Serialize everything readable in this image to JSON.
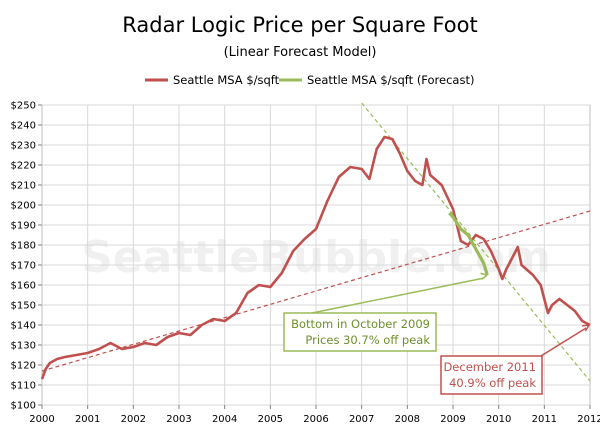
{
  "chart_data": {
    "type": "line",
    "title": "Radar Logic Price per Square Foot",
    "subtitle": "(Linear Forecast Model)",
    "watermark": "SeattleBubble.com",
    "xlabel": "",
    "ylabel": "",
    "ylim": [
      100,
      250
    ],
    "xlim": [
      2000,
      2012
    ],
    "grid": true,
    "legend_position": "top-center",
    "y_ticks": [
      100,
      110,
      120,
      130,
      140,
      150,
      160,
      170,
      180,
      190,
      200,
      210,
      220,
      230,
      240,
      250
    ],
    "y_tick_labels": [
      "$100",
      "$110",
      "$120",
      "$130",
      "$140",
      "$150",
      "$160",
      "$170",
      "$180",
      "$190",
      "$200",
      "$210",
      "$220",
      "$230",
      "$240",
      "$250"
    ],
    "x_ticks": [
      2000,
      2001,
      2002,
      2003,
      2004,
      2005,
      2006,
      2007,
      2008,
      2009,
      2010,
      2011,
      2012
    ],
    "x_tick_labels": [
      "2000",
      "2001",
      "2002",
      "2003",
      "2004",
      "2005",
      "2006",
      "2007",
      "2008",
      "2009",
      "2010",
      "2011",
      "2012"
    ],
    "series": [
      {
        "name": "Seattle MSA $/sqft",
        "color": "#c0504d",
        "style": "solid",
        "points": [
          [
            2000.0,
            113
          ],
          [
            2000.08,
            118
          ],
          [
            2000.17,
            121
          ],
          [
            2000.33,
            123
          ],
          [
            2000.5,
            124
          ],
          [
            2000.75,
            125
          ],
          [
            2001.0,
            126
          ],
          [
            2001.25,
            128
          ],
          [
            2001.5,
            131
          ],
          [
            2001.75,
            128
          ],
          [
            2002.0,
            129
          ],
          [
            2002.25,
            131
          ],
          [
            2002.5,
            130
          ],
          [
            2002.75,
            134
          ],
          [
            2003.0,
            136
          ],
          [
            2003.25,
            135
          ],
          [
            2003.5,
            140
          ],
          [
            2003.75,
            143
          ],
          [
            2004.0,
            142
          ],
          [
            2004.25,
            146
          ],
          [
            2004.5,
            156
          ],
          [
            2004.75,
            160
          ],
          [
            2005.0,
            159
          ],
          [
            2005.25,
            166
          ],
          [
            2005.5,
            177
          ],
          [
            2005.75,
            183
          ],
          [
            2006.0,
            188
          ],
          [
            2006.25,
            202
          ],
          [
            2006.5,
            214
          ],
          [
            2006.75,
            219
          ],
          [
            2007.0,
            218
          ],
          [
            2007.17,
            213
          ],
          [
            2007.33,
            228
          ],
          [
            2007.5,
            234
          ],
          [
            2007.67,
            233
          ],
          [
            2007.83,
            226
          ],
          [
            2008.0,
            217
          ],
          [
            2008.17,
            212
          ],
          [
            2008.33,
            210
          ],
          [
            2008.42,
            223
          ],
          [
            2008.5,
            215
          ],
          [
            2008.75,
            210
          ],
          [
            2009.0,
            198
          ],
          [
            2009.17,
            182
          ],
          [
            2009.33,
            180
          ],
          [
            2009.5,
            185
          ],
          [
            2009.67,
            183
          ],
          [
            2009.83,
            177
          ],
          [
            2010.0,
            168
          ],
          [
            2010.08,
            163
          ],
          [
            2010.17,
            168
          ],
          [
            2010.33,
            175
          ],
          [
            2010.42,
            179
          ],
          [
            2010.5,
            170
          ],
          [
            2010.75,
            165
          ],
          [
            2010.92,
            160
          ],
          [
            2011.0,
            153
          ],
          [
            2011.08,
            146
          ],
          [
            2011.17,
            150
          ],
          [
            2011.33,
            153
          ],
          [
            2011.5,
            150
          ],
          [
            2011.67,
            147
          ],
          [
            2011.83,
            142
          ],
          [
            2012.0,
            140
          ]
        ]
      },
      {
        "name": "Seattle MSA $/sqft (Forecast)",
        "color": "#9bbb59",
        "style": "solid",
        "points": [
          [
            2008.92,
            196
          ],
          [
            2009.0,
            194
          ],
          [
            2009.17,
            188
          ],
          [
            2009.33,
            185
          ],
          [
            2009.5,
            178
          ],
          [
            2009.67,
            171
          ],
          [
            2009.75,
            165
          ]
        ]
      }
    ],
    "trendlines": [
      {
        "color": "#c0504d",
        "points": [
          [
            2000,
            117
          ],
          [
            2012,
            197
          ]
        ]
      },
      {
        "color": "#9bbb59",
        "points": [
          [
            2007.0,
            251
          ],
          [
            2012,
            112
          ]
        ]
      }
    ],
    "annotations": [
      {
        "lines": [
          "Bottom in October 2009",
          "Prices 30.7% off peak"
        ],
        "color": "#9bbb59",
        "text_color": "#6f8f2f",
        "target": [
          2009.75,
          165
        ]
      },
      {
        "lines": [
          "December 2011",
          "40.9% off peak"
        ],
        "color": "#c0504d",
        "text_color": "#c0504d",
        "target": [
          2011.98,
          140
        ]
      }
    ]
  }
}
